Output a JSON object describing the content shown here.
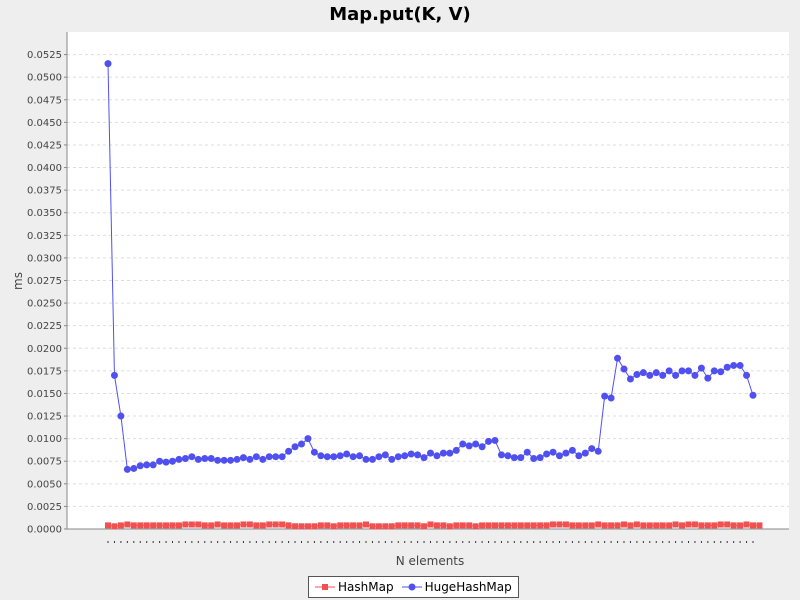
{
  "chart_data": {
    "type": "line",
    "title": "Map.put(K, V)",
    "xlabel": "N elements",
    "ylabel": "ms",
    "ylim": [
      0,
      0.055
    ],
    "yticks": [
      "0.0000",
      "0.0025",
      "0.0050",
      "0.0075",
      "0.0100",
      "0.0125",
      "0.0150",
      "0.0175",
      "0.0200",
      "0.0225",
      "0.0250",
      "0.0275",
      "0.0300",
      "0.0325",
      "0.0350",
      "0.0375",
      "0.0400",
      "0.0425",
      "0.0450",
      "0.0475",
      "0.0500",
      "0.0525"
    ],
    "grid": true,
    "legend": "bottom",
    "series": [
      {
        "name": "HashMap",
        "color": "#f05050",
        "marker": "square",
        "values": [
          0.0004,
          0.0003,
          0.0004,
          0.0005,
          0.0004,
          0.0004,
          0.0004,
          0.0004,
          0.0004,
          0.0004,
          0.0004,
          0.0004,
          0.0005,
          0.0005,
          0.0005,
          0.0004,
          0.0004,
          0.0005,
          0.0004,
          0.0004,
          0.0004,
          0.0005,
          0.0005,
          0.0004,
          0.0004,
          0.0005,
          0.0005,
          0.0005,
          0.0004,
          0.0003,
          0.0003,
          0.0003,
          0.0003,
          0.0004,
          0.0004,
          0.0003,
          0.0004,
          0.0004,
          0.0004,
          0.0004,
          0.0005,
          0.0003,
          0.0003,
          0.0003,
          0.0003,
          0.0004,
          0.0004,
          0.0004,
          0.0004,
          0.0003,
          0.0005,
          0.0004,
          0.0004,
          0.0003,
          0.0004,
          0.0004,
          0.0004,
          0.0003,
          0.0004,
          0.0004,
          0.0004,
          0.0004,
          0.0004,
          0.0004,
          0.0004,
          0.0004,
          0.0004,
          0.0004,
          0.0004,
          0.0005,
          0.0005,
          0.0005,
          0.0004,
          0.0004,
          0.0004,
          0.0004,
          0.0005,
          0.0004,
          0.0004,
          0.0004,
          0.0005,
          0.0004,
          0.0005,
          0.0004,
          0.0004,
          0.0004,
          0.0004,
          0.0004,
          0.0005,
          0.0004,
          0.0005,
          0.0005,
          0.0004,
          0.0004,
          0.0004,
          0.0005,
          0.0005,
          0.0004,
          0.0004,
          0.0005,
          0.0004,
          0.0004
        ]
      },
      {
        "name": "HugeHashMap",
        "color": "#5050f0",
        "marker": "circle",
        "values": [
          0.0515,
          0.017,
          0.0125,
          0.0066,
          0.0067,
          0.007,
          0.0071,
          0.0071,
          0.0075,
          0.0074,
          0.0075,
          0.0077,
          0.0078,
          0.008,
          0.0077,
          0.0078,
          0.0078,
          0.0076,
          0.0076,
          0.0076,
          0.0077,
          0.0079,
          0.0077,
          0.008,
          0.0077,
          0.008,
          0.008,
          0.008,
          0.0086,
          0.0091,
          0.0094,
          0.01,
          0.0085,
          0.0081,
          0.008,
          0.008,
          0.0081,
          0.0083,
          0.008,
          0.0081,
          0.0077,
          0.0077,
          0.008,
          0.0082,
          0.0077,
          0.008,
          0.0081,
          0.0083,
          0.0082,
          0.0079,
          0.0084,
          0.0081,
          0.0084,
          0.0084,
          0.0087,
          0.0094,
          0.0092,
          0.0094,
          0.0091,
          0.0097,
          0.0098,
          0.0082,
          0.0081,
          0.0079,
          0.0079,
          0.0085,
          0.0078,
          0.0079,
          0.0083,
          0.0085,
          0.0081,
          0.0084,
          0.0087,
          0.0081,
          0.0084,
          0.0089,
          0.0086,
          0.0147,
          0.0145,
          0.0189,
          0.0177,
          0.0166,
          0.0171,
          0.0173,
          0.017,
          0.0173,
          0.017,
          0.0175,
          0.017,
          0.0175,
          0.0175,
          0.017,
          0.0178,
          0.0167,
          0.0175,
          0.0174,
          0.0179,
          0.0181,
          0.0181,
          0.017,
          0.0148
        ]
      }
    ]
  }
}
